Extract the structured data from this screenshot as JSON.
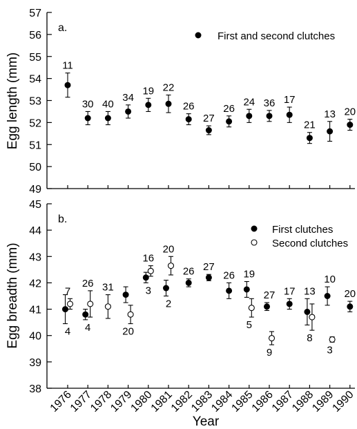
{
  "chart_data": [
    {
      "type": "scatter",
      "panel_label": "a.",
      "ylabel": "Egg length (mm)",
      "ylim": [
        49,
        57
      ],
      "yticks": [
        49,
        50,
        51,
        52,
        53,
        54,
        55,
        56,
        57
      ],
      "categories": [
        "1976",
        "1977",
        "1978",
        "1979",
        "1980",
        "1981",
        "1982",
        "1983",
        "1984",
        "1985",
        "1986",
        "1987",
        "1988",
        "1989",
        "1990"
      ],
      "legend_position": "top-right",
      "series": [
        {
          "name": "First and second clutches",
          "marker": "filled",
          "values": [
            53.7,
            52.2,
            52.2,
            52.5,
            52.8,
            52.85,
            52.15,
            51.65,
            52.05,
            52.3,
            52.3,
            52.35,
            51.3,
            51.6,
            51.9
          ],
          "err": [
            0.55,
            0.3,
            0.3,
            0.3,
            0.3,
            0.4,
            0.25,
            0.2,
            0.25,
            0.3,
            0.25,
            0.35,
            0.25,
            0.45,
            0.25
          ],
          "n_labels": [
            "11",
            "30",
            "40",
            "34",
            "19",
            "22",
            "26",
            "27",
            "26",
            "24",
            "36",
            "17",
            "21",
            "13",
            "20"
          ]
        }
      ]
    },
    {
      "type": "scatter",
      "panel_label": "b.",
      "ylabel": "Egg breadth (mm)",
      "xlabel": "Year",
      "ylim": [
        38,
        45
      ],
      "yticks": [
        38,
        39,
        40,
        41,
        42,
        43,
        44,
        45
      ],
      "categories": [
        "1976",
        "1977",
        "1978",
        "1979",
        "1980",
        "1981",
        "1982",
        "1983",
        "1984",
        "1985",
        "1986",
        "1987",
        "1988",
        "1989",
        "1990"
      ],
      "legend_position": "top-right",
      "series": [
        {
          "name": "First clutches",
          "marker": "filled",
          "values": [
            41.0,
            40.8,
            null,
            41.55,
            42.2,
            41.8,
            42.0,
            42.2,
            41.7,
            41.75,
            41.1,
            41.2,
            40.9,
            41.5,
            41.1
          ],
          "err": [
            0.55,
            0.2,
            null,
            0.3,
            0.2,
            0.3,
            0.15,
            0.12,
            0.3,
            0.3,
            0.15,
            0.2,
            0.5,
            0.35,
            0.2
          ],
          "n_labels": [
            "4",
            "4",
            "",
            "",
            "3",
            "2",
            "26",
            "27",
            "26",
            "19",
            "27",
            "17",
            "13",
            "10",
            "20"
          ]
        },
        {
          "name": "Second clutches",
          "marker": "open",
          "values": [
            41.2,
            41.2,
            41.1,
            40.8,
            42.45,
            42.65,
            null,
            null,
            null,
            41.05,
            39.9,
            null,
            40.7,
            39.85,
            null
          ],
          "err": [
            0.2,
            0.5,
            0.45,
            0.35,
            0.2,
            0.35,
            null,
            null,
            null,
            0.35,
            0.25,
            null,
            0.5,
            0.1,
            null
          ],
          "n_labels": [
            "7",
            "26",
            "31",
            "20",
            "16",
            "20",
            "",
            "",
            "",
            "5",
            "9",
            "",
            "8",
            "3",
            ""
          ]
        }
      ]
    }
  ]
}
